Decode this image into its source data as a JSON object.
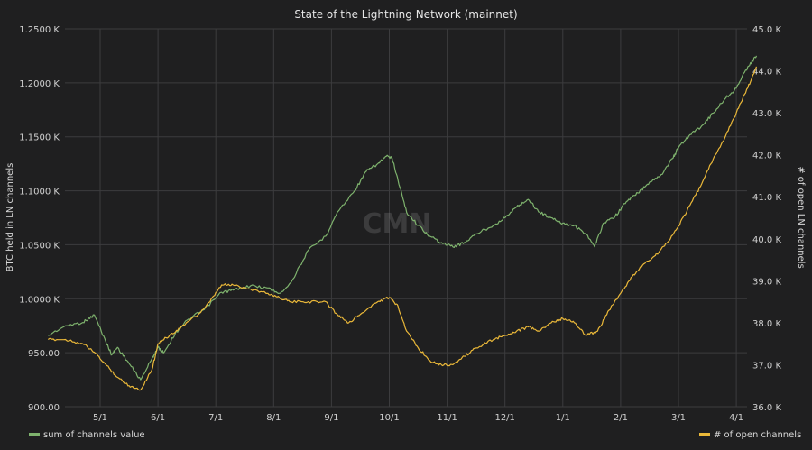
{
  "chart_data": {
    "type": "line",
    "title": "State of the Lightning Network (mainnet)",
    "watermark": "CMN",
    "x_ticks": [
      "5/1",
      "6/1",
      "7/1",
      "8/1",
      "9/1",
      "10/1",
      "11/1",
      "12/1",
      "1/1",
      "2/1",
      "3/1",
      "4/1"
    ],
    "y_left": {
      "label": "BTC held in LN channels",
      "min": 900,
      "max": 1250,
      "ticks": [
        {
          "value": 900,
          "label": "900.00"
        },
        {
          "value": 950,
          "label": "950.00"
        },
        {
          "value": 1000,
          "label": "1.0000 K"
        },
        {
          "value": 1050,
          "label": "1.0500 K"
        },
        {
          "value": 1100,
          "label": "1.1000 K"
        },
        {
          "value": 1150,
          "label": "1.1500 K"
        },
        {
          "value": 1200,
          "label": "1.2000 K"
        },
        {
          "value": 1250,
          "label": "1.2500 K"
        }
      ]
    },
    "y_right": {
      "label": "# of open LN channels",
      "min": 36000,
      "max": 45000,
      "ticks": [
        {
          "value": 36000,
          "label": "36.0 K"
        },
        {
          "value": 37000,
          "label": "37.0 K"
        },
        {
          "value": 38000,
          "label": "38.0 K"
        },
        {
          "value": 39000,
          "label": "39.0 K"
        },
        {
          "value": 40000,
          "label": "40.0 K"
        },
        {
          "value": 41000,
          "label": "41.0 K"
        },
        {
          "value": 42000,
          "label": "42.0 K"
        },
        {
          "value": 43000,
          "label": "43.0 K"
        },
        {
          "value": 44000,
          "label": "44.0 K"
        },
        {
          "value": 45000,
          "label": "45.0 K"
        }
      ]
    },
    "series": [
      {
        "name": "sum of channels value",
        "axis": "left",
        "color": "#7eb26d",
        "x": [
          -0.9,
          -0.6,
          -0.3,
          -0.1,
          0.1,
          0.2,
          0.3,
          0.5,
          0.7,
          0.9,
          1.0,
          1.1,
          1.3,
          1.5,
          1.8,
          2.1,
          2.3,
          2.6,
          2.9,
          3.1,
          3.3,
          3.6,
          3.9,
          4.1,
          4.4,
          4.6,
          4.8,
          4.95,
          5.05,
          5.15,
          5.3,
          5.5,
          5.7,
          5.9,
          6.1,
          6.3,
          6.5,
          6.8,
          7.0,
          7.2,
          7.4,
          7.6,
          7.8,
          8.0,
          8.2,
          8.4,
          8.55,
          8.7,
          8.9,
          9.1,
          9.3,
          9.5,
          9.7,
          9.9,
          10.0,
          10.2,
          10.4,
          10.6,
          10.8,
          11.0,
          11.2,
          11.35
        ],
        "y": [
          966,
          975,
          978,
          985,
          960,
          948,
          955,
          940,
          925,
          945,
          955,
          950,
          968,
          980,
          990,
          1006,
          1008,
          1012,
          1010,
          1005,
          1015,
          1045,
          1058,
          1080,
          1100,
          1118,
          1125,
          1132,
          1130,
          1110,
          1080,
          1068,
          1058,
          1052,
          1048,
          1052,
          1060,
          1068,
          1075,
          1085,
          1092,
          1080,
          1075,
          1070,
          1068,
          1060,
          1048,
          1070,
          1076,
          1090,
          1098,
          1108,
          1115,
          1130,
          1140,
          1152,
          1160,
          1172,
          1185,
          1195,
          1215,
          1225
        ]
      },
      {
        "name": "# of open channels",
        "axis": "right",
        "color": "#eab839",
        "x": [
          -0.9,
          -0.6,
          -0.3,
          -0.1,
          0.1,
          0.3,
          0.5,
          0.7,
          0.9,
          1.0,
          1.2,
          1.4,
          1.7,
          1.9,
          2.1,
          2.3,
          2.6,
          2.9,
          3.1,
          3.3,
          3.6,
          3.9,
          4.1,
          4.3,
          4.5,
          4.8,
          5.0,
          5.15,
          5.3,
          5.5,
          5.7,
          5.9,
          6.1,
          6.3,
          6.5,
          6.8,
          7.0,
          7.2,
          7.4,
          7.6,
          7.8,
          8.0,
          8.2,
          8.4,
          8.6,
          8.8,
          9.0,
          9.2,
          9.4,
          9.6,
          9.8,
          10.0,
          10.2,
          10.4,
          10.6,
          10.8,
          11.0,
          11.2,
          11.35
        ],
        "y": [
          37.6,
          37.6,
          37.5,
          37.3,
          37.0,
          36.7,
          36.5,
          36.4,
          36.9,
          37.5,
          37.7,
          37.9,
          38.2,
          38.5,
          38.9,
          38.9,
          38.8,
          38.7,
          38.6,
          38.5,
          38.5,
          38.5,
          38.2,
          38.0,
          38.2,
          38.5,
          38.6,
          38.4,
          37.8,
          37.4,
          37.1,
          37.0,
          37.0,
          37.2,
          37.4,
          37.6,
          37.7,
          37.8,
          37.9,
          37.8,
          38.0,
          38.1,
          38.0,
          37.7,
          37.8,
          38.3,
          38.7,
          39.1,
          39.4,
          39.6,
          39.9,
          40.3,
          40.8,
          41.3,
          41.9,
          42.4,
          43.0,
          43.6,
          44.1
        ]
      }
    ],
    "legend": [
      {
        "name": "sum of channels value",
        "color": "#7eb26d",
        "position": "bottom-left"
      },
      {
        "name": "# of open channels",
        "color": "#eab839",
        "position": "bottom-right"
      }
    ],
    "grid": true
  }
}
